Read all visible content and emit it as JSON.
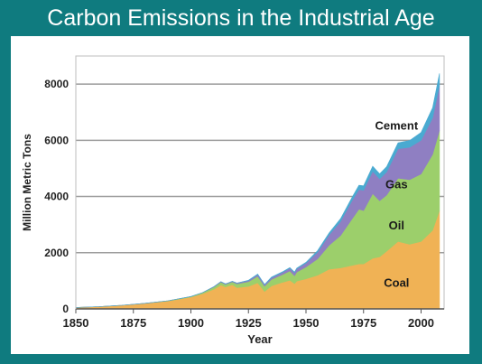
{
  "slide": {
    "title": "Carbon Emissions in the Industrial Age"
  },
  "chart_data": {
    "type": "area",
    "stacked": true,
    "xlabel": "Year",
    "ylabel": "Million Metric Tons",
    "xlim": [
      1850,
      2010
    ],
    "ylim": [
      0,
      9000
    ],
    "xticks": [
      1850,
      1875,
      1900,
      1925,
      1950,
      1975,
      2000
    ],
    "yticks": [
      0,
      2000,
      4000,
      6000,
      8000
    ],
    "grid": "horizontal",
    "x": [
      1850,
      1860,
      1870,
      1880,
      1890,
      1900,
      1905,
      1910,
      1913,
      1915,
      1918,
      1920,
      1925,
      1929,
      1932,
      1935,
      1940,
      1943,
      1945,
      1946,
      1950,
      1955,
      1960,
      1965,
      1970,
      1973,
      1975,
      1979,
      1982,
      1985,
      1990,
      1995,
      2000,
      2005,
      2008
    ],
    "series": [
      {
        "name": "Coal",
        "color": "#f0b255",
        "values": [
          50,
          80,
          130,
          200,
          280,
          420,
          540,
          700,
          850,
          780,
          860,
          760,
          800,
          930,
          620,
          820,
          950,
          1020,
          900,
          990,
          1070,
          1200,
          1410,
          1460,
          1550,
          1600,
          1600,
          1800,
          1850,
          2050,
          2400,
          2300,
          2400,
          2800,
          3500
        ]
      },
      {
        "name": "Oil",
        "color": "#9ccf6b",
        "values": [
          0,
          0,
          0,
          0,
          10,
          20,
          40,
          80,
          100,
          90,
          100,
          130,
          170,
          230,
          190,
          230,
          280,
          330,
          280,
          320,
          420,
          580,
          850,
          1150,
          1650,
          1950,
          1900,
          2300,
          2000,
          2000,
          2250,
          2300,
          2400,
          2700,
          2850
        ]
      },
      {
        "name": "Gas",
        "color": "#8f7fc2",
        "values": [
          0,
          0,
          0,
          0,
          0,
          0,
          0,
          10,
          20,
          20,
          20,
          30,
          40,
          60,
          50,
          60,
          80,
          100,
          110,
          120,
          140,
          240,
          370,
          500,
          650,
          700,
          720,
          800,
          780,
          820,
          1050,
          1150,
          1200,
          1300,
          1600
        ]
      },
      {
        "name": "Cement",
        "color": "#4aaad1",
        "values": [
          0,
          0,
          0,
          0,
          0,
          0,
          0,
          0,
          0,
          0,
          0,
          0,
          10,
          20,
          10,
          20,
          20,
          20,
          20,
          20,
          30,
          50,
          70,
          100,
          120,
          150,
          160,
          180,
          180,
          190,
          210,
          240,
          280,
          360,
          430
        ]
      }
    ],
    "label_positions": [
      "inside"
    ]
  }
}
